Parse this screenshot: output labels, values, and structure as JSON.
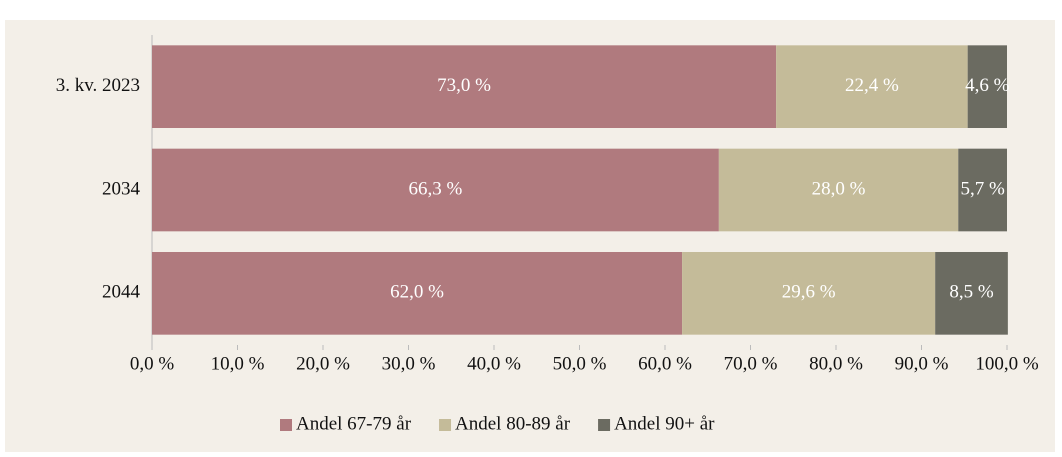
{
  "chart_data": {
    "type": "stacked_barh",
    "categories": [
      "3. kv. 2023",
      "2034",
      "2044"
    ],
    "series": [
      {
        "name": "Andel 67-79 år",
        "color": "#b07a7e",
        "values": [
          73.0,
          66.3,
          62.0
        ],
        "value_labels": [
          "73,0 %",
          "66,3 %",
          "62,0 %"
        ]
      },
      {
        "name": "Andel 80-89 år",
        "color": "#c4bb99",
        "values": [
          22.4,
          28.0,
          29.6
        ],
        "value_labels": [
          "22,4 %",
          "28,0 %",
          "29,6 %"
        ]
      },
      {
        "name": "Andel 90+ år",
        "color": "#6b6b61",
        "values": [
          4.6,
          5.7,
          8.5
        ],
        "value_labels": [
          "4,6 %",
          "5,7 %",
          "8,5 %"
        ]
      }
    ],
    "xlim": [
      0,
      100
    ],
    "xticks": [
      {
        "value": 0,
        "label": "0,0 %"
      },
      {
        "value": 10,
        "label": "10,0 %"
      },
      {
        "value": 20,
        "label": "20,0 %"
      },
      {
        "value": 30,
        "label": "30,0 %"
      },
      {
        "value": 40,
        "label": "40,0 %"
      },
      {
        "value": 50,
        "label": "50,0 %"
      },
      {
        "value": 60,
        "label": "60,0 %"
      },
      {
        "value": 70,
        "label": "70,0 %"
      },
      {
        "value": 80,
        "label": "80,0 %"
      },
      {
        "value": 90,
        "label": "90,0 %"
      },
      {
        "value": 100,
        "label": "100,0 %"
      }
    ],
    "legend": "bottom"
  }
}
